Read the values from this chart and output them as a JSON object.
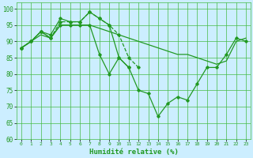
{
  "x": [
    0,
    1,
    2,
    3,
    4,
    5,
    6,
    7,
    8,
    9,
    10,
    11,
    12,
    13,
    14,
    15,
    16,
    17,
    18,
    19,
    20,
    21,
    22,
    23
  ],
  "line1": [
    88,
    90,
    93,
    91,
    96,
    96,
    96,
    99,
    97,
    95,
    92,
    85,
    82,
    null,
    null,
    null,
    null,
    null,
    null,
    null,
    null,
    null,
    null,
    null
  ],
  "line2": [
    88,
    90,
    93,
    92,
    97,
    96,
    96,
    99,
    97,
    95,
    85,
    82,
    null,
    null,
    null,
    null,
    null,
    null,
    null,
    null,
    null,
    null,
    null,
    null
  ],
  "line3": [
    88,
    90,
    92,
    91,
    95,
    95,
    95,
    95,
    94,
    93,
    92,
    91,
    90,
    89,
    88,
    87,
    86,
    86,
    85,
    84,
    83,
    84,
    90,
    91
  ],
  "line4": [
    88,
    90,
    93,
    91,
    95,
    95,
    95,
    95,
    86,
    80,
    85,
    82,
    75,
    74,
    67,
    71,
    73,
    72,
    77,
    82,
    82,
    86,
    91,
    90
  ],
  "background_color": "#cceeff",
  "grid_color": "#44bb44",
  "line_color": "#229922",
  "xlabel": "Humidité relative (%)",
  "ylim": [
    60,
    102
  ],
  "xlim": [
    -0.5,
    23.5
  ],
  "yticks": [
    60,
    65,
    70,
    75,
    80,
    85,
    90,
    95,
    100
  ],
  "xtick_labels": [
    "0",
    "1",
    "2",
    "3",
    "4",
    "5",
    "6",
    "7",
    "8",
    "9",
    "10",
    "11",
    "12",
    "13",
    "14",
    "15",
    "16",
    "17",
    "18",
    "19",
    "20",
    "21",
    "22",
    "23"
  ]
}
